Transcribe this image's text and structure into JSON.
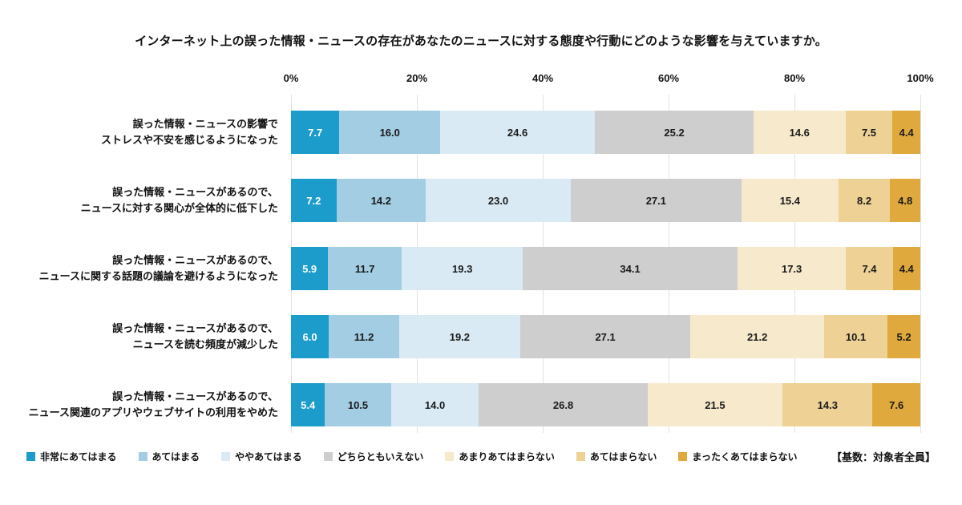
{
  "notes": {
    "basis": "【基数：対象者全員】"
  },
  "chart_data": {
    "type": "bar",
    "orientation": "horizontal-stacked",
    "title": "インターネット上の誤った情報・ニュースの存在があなたのニュースに対する態度や行動にどのような影響を与えていますか。",
    "xlabel": "",
    "ylabel": "",
    "xlim": [
      0,
      100
    ],
    "x_ticks": [
      "0%",
      "20%",
      "40%",
      "60%",
      "80%",
      "100%"
    ],
    "grid": true,
    "legend_position": "bottom",
    "categories": [
      "誤った情報・ニュースの影響で\nストレスや不安を感じるようになった",
      "誤った情報・ニュースがあるので、\nニュースに対する関心が全体的に低下した",
      "誤った情報・ニュースがあるので、\nニュースに関する話題の議論を避けるようになった",
      "誤った情報・ニュースがあるので、\nニュースを読む頻度が減少した",
      "誤った情報・ニュースがあるので、\nニュース関連のアプリやウェブサイトの利用をやめた"
    ],
    "series": [
      {
        "name": "非常にあてはまる",
        "color": "#1b9cca",
        "text_color": "#ffffff",
        "values": [
          7.7,
          7.2,
          5.9,
          6.0,
          5.4
        ]
      },
      {
        "name": "あてはまる",
        "color": "#a2cde3",
        "text_color": "#1a1a1a",
        "values": [
          16.0,
          14.2,
          11.7,
          11.2,
          10.5
        ]
      },
      {
        "name": "ややあてはまる",
        "color": "#d9eaf4",
        "text_color": "#1a1a1a",
        "values": [
          24.6,
          23.0,
          19.3,
          19.2,
          14.0
        ]
      },
      {
        "name": "どちらともいえない",
        "color": "#cecece",
        "text_color": "#1a1a1a",
        "values": [
          25.2,
          27.1,
          34.1,
          27.1,
          26.8
        ]
      },
      {
        "name": "あまりあてはまらない",
        "color": "#f7e9cb",
        "text_color": "#1a1a1a",
        "values": [
          14.6,
          15.4,
          17.3,
          21.2,
          21.5
        ]
      },
      {
        "name": "あてはまらない",
        "color": "#eed195",
        "text_color": "#1a1a1a",
        "values": [
          7.5,
          8.2,
          7.4,
          10.1,
          14.3
        ]
      },
      {
        "name": "まったくあてはまらない",
        "color": "#e0a93e",
        "text_color": "#1a1a1a",
        "values": [
          4.4,
          4.8,
          4.4,
          5.2,
          7.6
        ]
      }
    ]
  }
}
